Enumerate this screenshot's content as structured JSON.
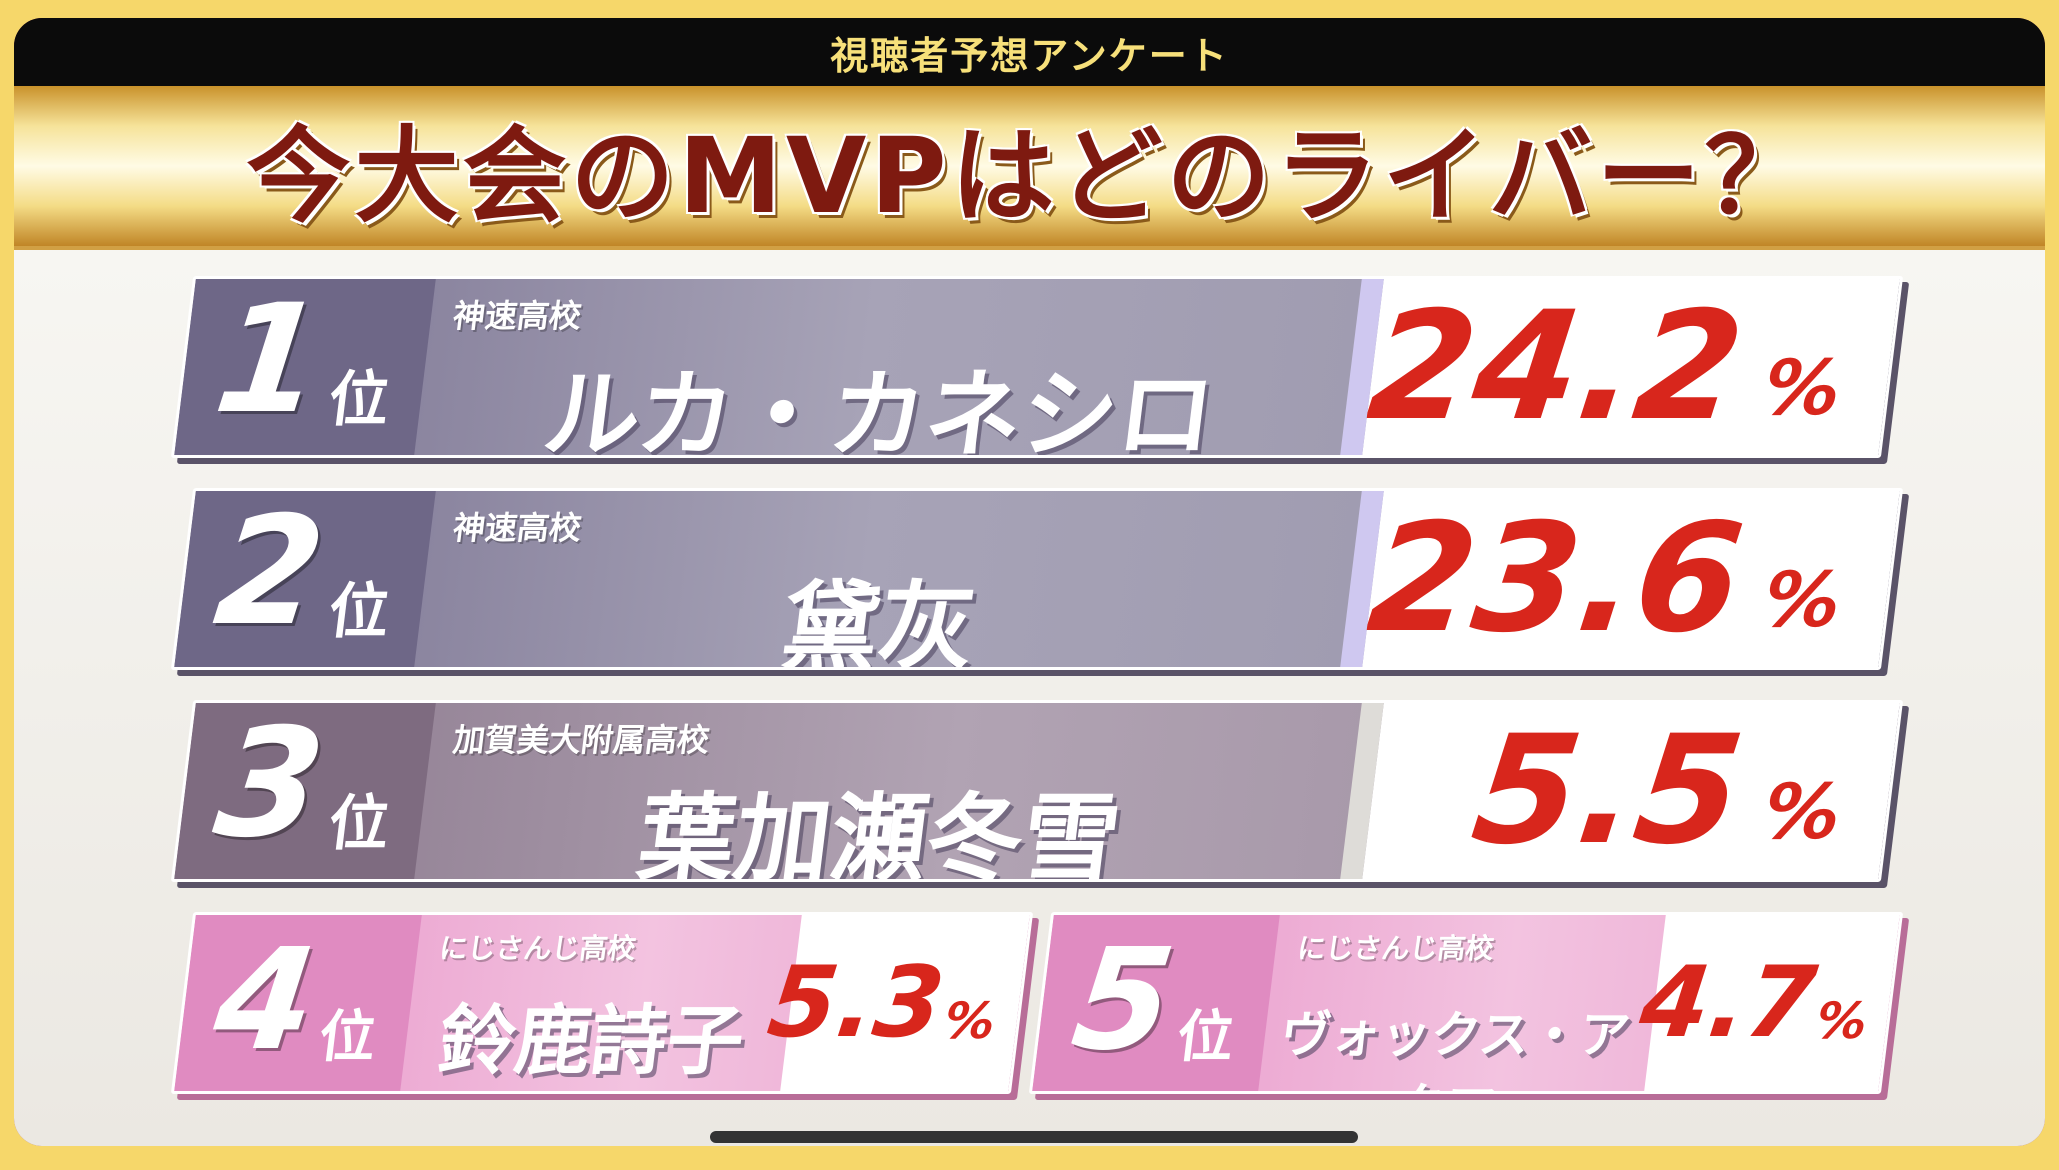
{
  "header": {
    "subtitle": "視聴者予想アンケート",
    "title": "今大会のMVPはどのライバー？"
  },
  "rank_suffix": "位",
  "percent_sign": "%",
  "rankings": [
    {
      "rank": "1",
      "school": "神速高校",
      "name": "ルカ・カネシロ",
      "percent": "24.2"
    },
    {
      "rank": "2",
      "school": "神速高校",
      "name": "黛灰",
      "percent": "23.6"
    },
    {
      "rank": "3",
      "school": "加賀美大附属高校",
      "name": "葉加瀬冬雪",
      "percent": "5.5"
    },
    {
      "rank": "4",
      "school": "にじさんじ高校",
      "name": "鈴鹿詩子",
      "percent": "5.3"
    },
    {
      "rank": "5",
      "school": "にじさんじ高校",
      "name": "ヴォックス・アクマ",
      "percent": "4.7"
    }
  ],
  "colors": {
    "title_text": "#7e1a10",
    "percent_text": "#d8261c",
    "top_band": "#a7a3b7",
    "pink_band": "#f3c3e0"
  }
}
